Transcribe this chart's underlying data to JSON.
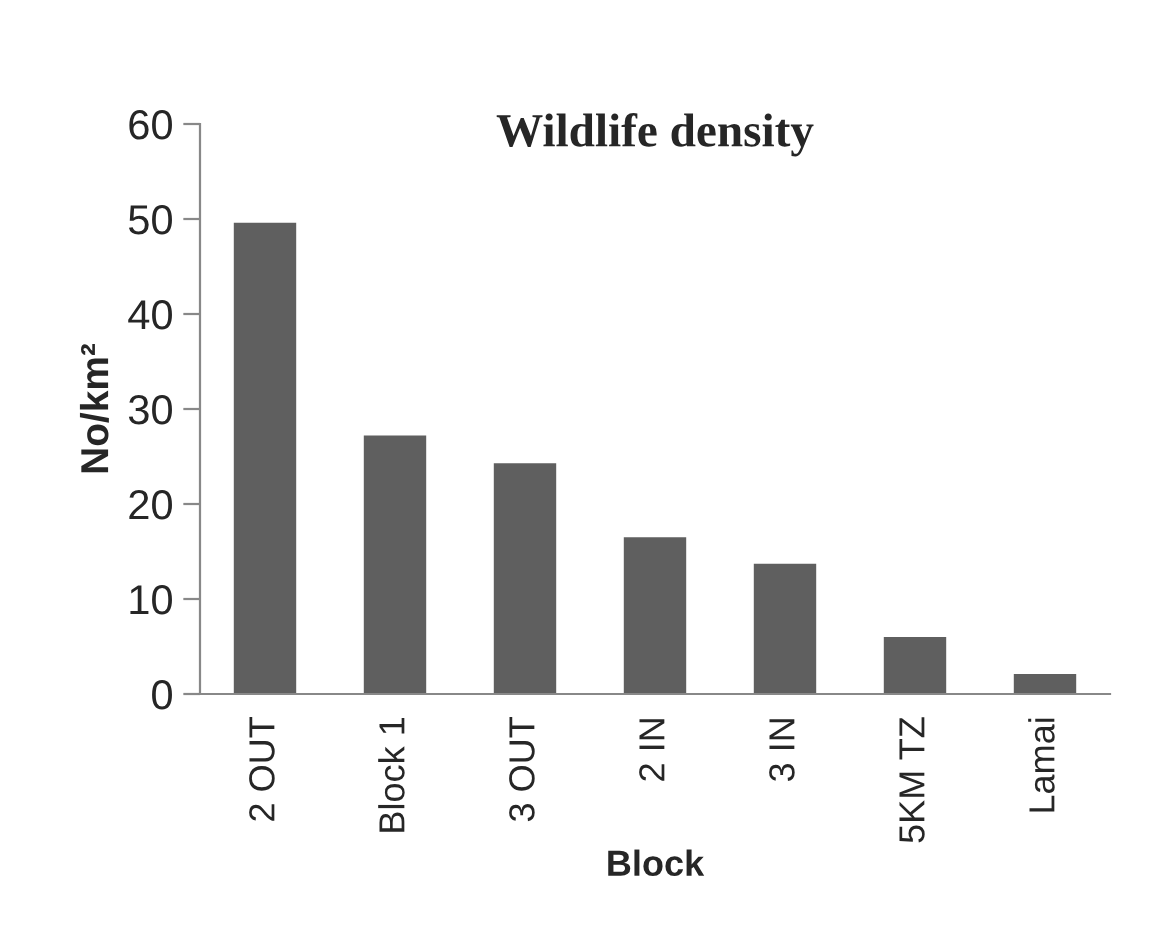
{
  "chart_data": {
    "type": "bar",
    "title": "Wildlife density",
    "xlabel": "Block",
    "ylabel": "No/km²",
    "categories": [
      "2 OUT",
      "Block 1",
      "3 OUT",
      "2 IN",
      "3 IN",
      "5KM TZ",
      "Lamai"
    ],
    "values": [
      49.6,
      27.2,
      24.3,
      16.5,
      13.7,
      6.0,
      2.1
    ],
    "color": "#5f5f5f",
    "ylim": [
      0,
      60
    ],
    "yticks": [
      0,
      10,
      20,
      30,
      40,
      50,
      60
    ],
    "grid": false,
    "legend": false
  }
}
